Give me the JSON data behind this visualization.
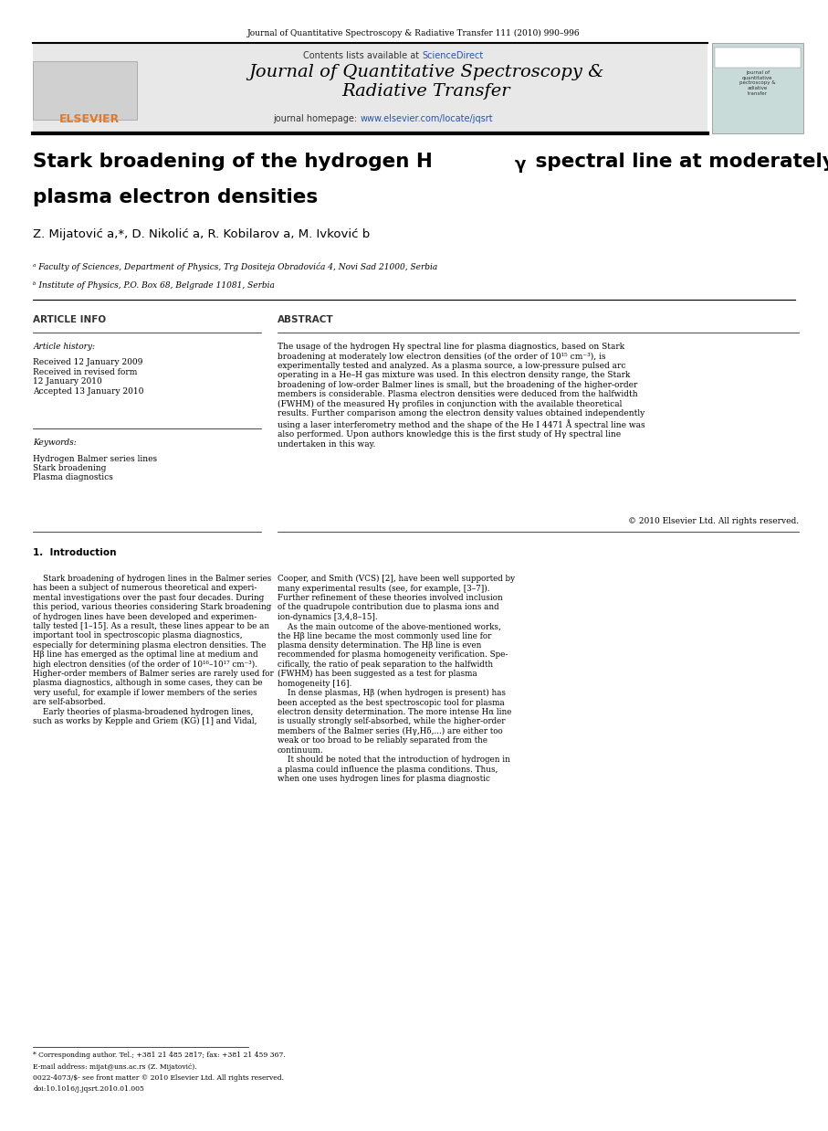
{
  "page_width": 9.07,
  "page_height": 12.38,
  "dpi": 100,
  "bg_color": "#ffffff",
  "top_journal_line": "Journal of Quantitative Spectroscopy & Radiative Transfer 111 (2010) 990–996",
  "header_bg": "#e8e8e8",
  "header_contents_line": "Contents lists available at ",
  "header_sciencedirect": "ScienceDirect",
  "header_sciencedirect_color": "#2255aa",
  "header_journal_title": "Journal of Quantitative Spectroscopy &\nRadiative Transfer",
  "header_homepage_prefix": "journal homepage: ",
  "header_homepage_url": "www.elsevier.com/locate/jqsrt",
  "header_homepage_url_color": "#2255aa",
  "sidebar_bg": "#c8dbd8",
  "sidebar_text": "journal of\nquantitative\npectroscopy &\nadiative\ntransfer",
  "article_title_line1": "Stark broadening of the hydrogen H",
  "article_title_gamma": "γ",
  "article_title_line2": " spectral line at moderately low",
  "article_title_line3": "plasma electron densities",
  "authors": "Z. Mijatović a,*, D. Nikolić a, R. Kobilarov a, M. Ivković b",
  "affil_a": "ᵃ Faculty of Sciences, Department of Physics, Trg Dositeja Obradovića 4, Novi Sad 21000, Serbia",
  "affil_b": "ᵇ Institute of Physics, P.O. Box 68, Belgrade 11081, Serbia",
  "article_info_title": "ARTICLE INFO",
  "article_history_label": "Article history:",
  "article_history": "Received 12 January 2009\nReceived in revised form\n12 January 2010\nAccepted 13 January 2010",
  "keywords_label": "Keywords:",
  "keywords": "Hydrogen Balmer series lines\nStark broadening\nPlasma diagnostics",
  "abstract_title": "ABSTRACT",
  "abstract_text": "The usage of the hydrogen Hγ spectral line for plasma diagnostics, based on Stark\nbroadening at moderately low electron densities (of the order of 10¹⁵ cm⁻³), is\nexperimentally tested and analyzed. As a plasma source, a low-pressure pulsed arc\noperating in a He–H gas mixture was used. In this electron density range, the Stark\nbroadening of low-order Balmer lines is small, but the broadening of the higher-order\nmembers is considerable. Plasma electron densities were deduced from the halfwidth\n(FWHM) of the measured Hγ profiles in conjunction with the available theoretical\nresults. Further comparison among the electron density values obtained independently\nusing a laser interferometry method and the shape of the He I 4471 Å spectral line was\nalso performed. Upon authors knowledge this is the first study of Hγ spectral line\nundertaken in this way.",
  "copyright_line": "© 2010 Elsevier Ltd. All rights reserved.",
  "intro_title": "1.  Introduction",
  "intro_col1": "    Stark broadening of hydrogen lines in the Balmer series\nhas been a subject of numerous theoretical and experi-\nmental investigations over the past four decades. During\nthis period, various theories considering Stark broadening\nof hydrogen lines have been developed and experimen-\ntally tested [1–15]. As a result, these lines appear to be an\nimportant tool in spectroscopic plasma diagnostics,\nespecially for determining plasma electron densities. The\nHβ line has emerged as the optimal line at medium and\nhigh electron densities (of the order of 10¹⁶–10¹⁷ cm⁻³).\nHigher-order members of Balmer series are rarely used for\nplasma diagnostics, although in some cases, they can be\nvery useful, for example if lower members of the series\nare self-absorbed.\n    Early theories of plasma-broadened hydrogen lines,\nsuch as works by Kepple and Griem (KG) [1] and Vidal,",
  "intro_col2": "Cooper, and Smith (VCS) [2], have been well supported by\nmany experimental results (see, for example, [3–7]).\nFurther refinement of these theories involved inclusion\nof the quadrupole contribution due to plasma ions and\nion-dynamics [3,4,8–15].\n    As the main outcome of the above-mentioned works,\nthe Hβ line became the most commonly used line for\nplasma density determination. The Hβ line is even\nrecommended for plasma homogeneity verification. Spe-\ncifically, the ratio of peak separation to the halfwidth\n(FWHM) has been suggested as a test for plasma\nhomogeneity [16].\n    In dense plasmas, Hβ (when hydrogen is present) has\nbeen accepted as the best spectroscopic tool for plasma\nelectron density determination. The more intense Hα line\nis usually strongly self-absorbed, while the higher-order\nmembers of the Balmer series (Hγ,Hδ,...) are either too\nweak or too broad to be reliably separated from the\ncontinuum.\n    It should be noted that the introduction of hydrogen in\na plasma could influence the plasma conditions. Thus,\nwhen one uses hydrogen lines for plasma diagnostic",
  "footnote_star": "* Corresponding author. Tel.; +381 21 485 2817; fax: +381 21 459 367.",
  "footnote_email": "E-mail address: mijat@uns.ac.rs (Z. Mijatović).",
  "footnote_issn": "0022-4073/$- see front matter © 2010 Elsevier Ltd. All rights reserved.",
  "footnote_doi": "doi:10.1016/j.jqsrt.2010.01.005"
}
